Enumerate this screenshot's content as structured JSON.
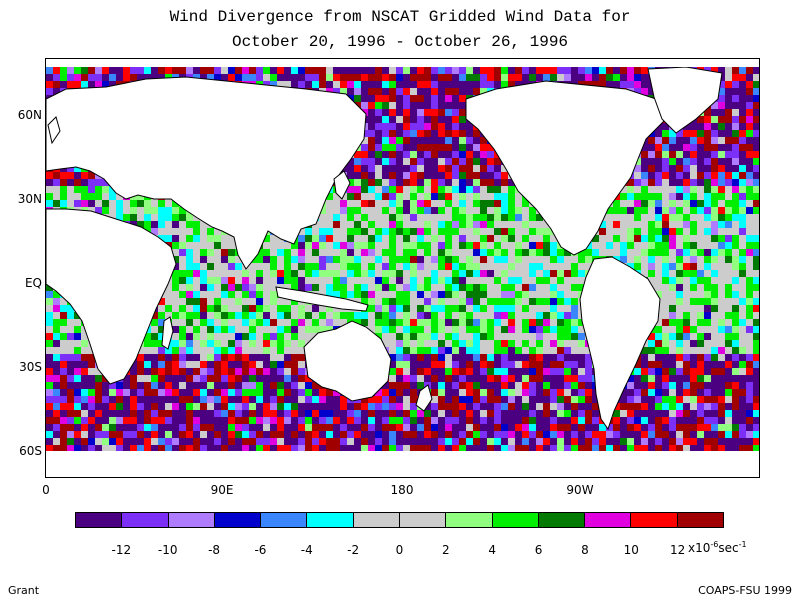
{
  "title": {
    "line1": "Wind Divergence from NSCAT Gridded Wind Data for",
    "line2": "October 20, 1996 - October 26, 1996"
  },
  "axes": {
    "lat_labels": [
      "60N",
      "30N",
      "EQ",
      "30S",
      "60S"
    ],
    "lon_labels": [
      "0",
      "90E",
      "180",
      "90W"
    ]
  },
  "legend": {
    "colors": [
      "#4b0082",
      "#7b2ff7",
      "#b07cff",
      "#0000cd",
      "#3a86ff",
      "#00ffff",
      "#cccccc",
      "#cccccc",
      "#90ff80",
      "#00ee00",
      "#007a00",
      "#e000e0",
      "#ff0000",
      "#a00000"
    ],
    "tick_labels": [
      "-12",
      "-10",
      "-8",
      "-6",
      "-4",
      "-2",
      "0",
      "2",
      "4",
      "6",
      "8",
      "10",
      "12"
    ],
    "units_prefix": "x10",
    "units_exponent": "-6",
    "units_suffix": "sec",
    "units_suffix_exponent": "-1"
  },
  "footer": {
    "left": "Grant",
    "right": "COAPS-FSU 1999"
  }
}
